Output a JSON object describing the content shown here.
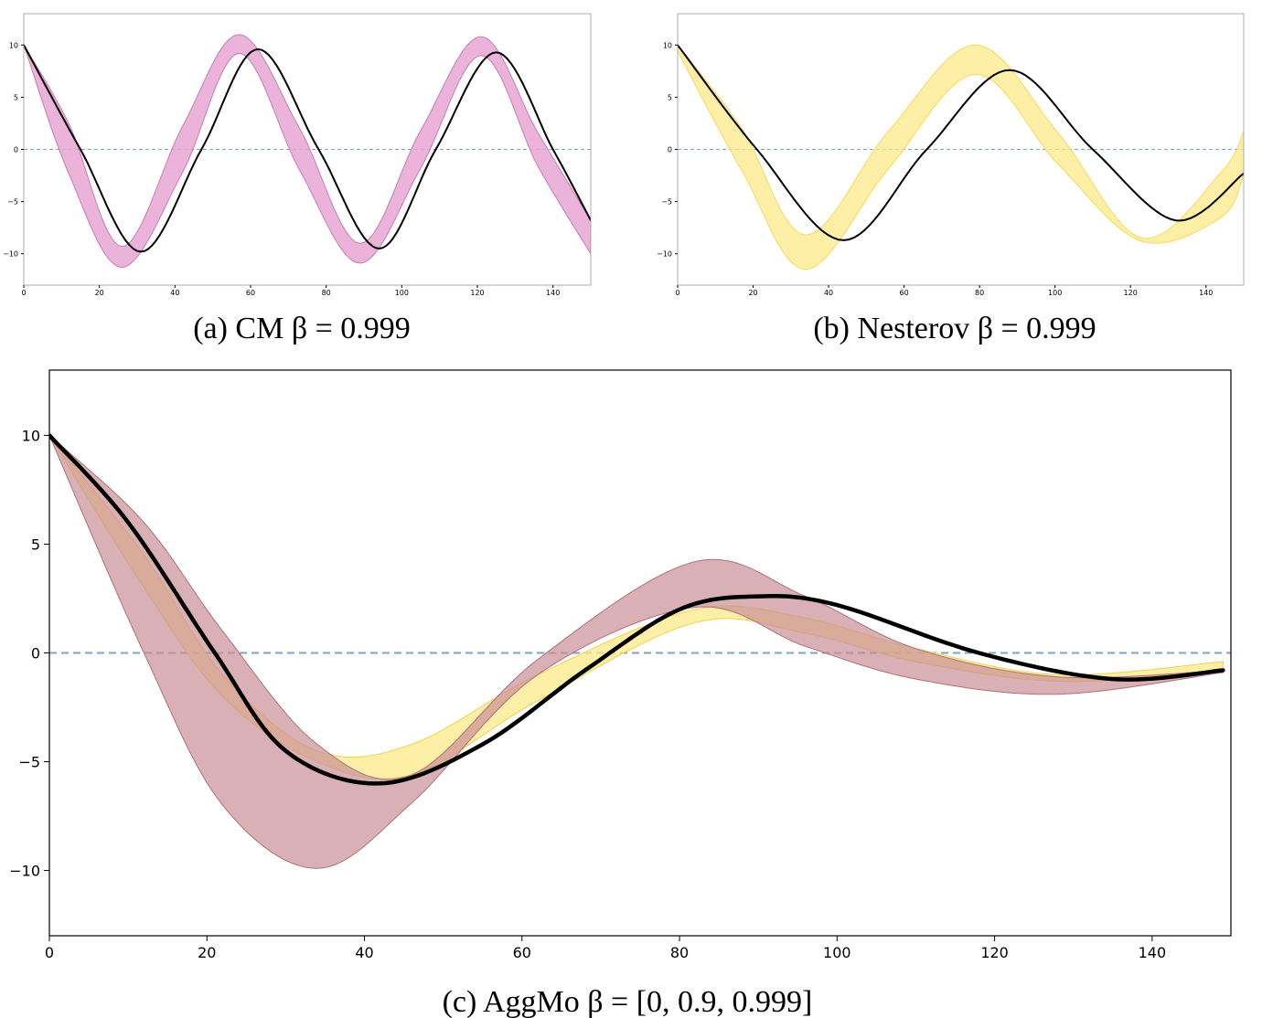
{
  "captions": {
    "a": "(a) CM β = 0.999",
    "b": "(b) Nesterov β = 0.999",
    "c": "(c) AggMo β = [0, 0.9, 0.999]"
  },
  "colors": {
    "cm_band": "#e9a6d3",
    "cm_band_edge": "#c87bb0",
    "nesterov_band": "#fde98a",
    "aggmo_band_wide": "#c98f95",
    "aggmo_band_mid": "#e6a36a",
    "aggmo_band_yellow": "#fde98a",
    "mean_line": "#000000",
    "zero_line": "#7aa3c4"
  },
  "chart_data": [
    {
      "id": "a",
      "type": "area",
      "title": "",
      "xlabel": "",
      "ylabel": "",
      "xlim": [
        0,
        150
      ],
      "ylim": [
        -13,
        13
      ],
      "xticks": [
        0,
        20,
        40,
        60,
        80,
        100,
        120,
        140
      ],
      "yticks": [
        -10,
        -5,
        0,
        5,
        10
      ],
      "grid": false,
      "zero_line": 0,
      "series": [
        {
          "kind": "line",
          "x": [
            0,
            15,
            31,
            47,
            62,
            78,
            94,
            109,
            125,
            140,
            150
          ],
          "y": [
            10,
            0,
            -9.8,
            0,
            9.6,
            0,
            -9.5,
            0,
            9.3,
            0,
            -6.8
          ]
        },
        {
          "kind": "band",
          "x": [
            0,
            12,
            26,
            42,
            57,
            73,
            89,
            105,
            121,
            136,
            150
          ],
          "y_upper": [
            10,
            2.4,
            -9.3,
            2.2,
            11,
            2.0,
            -9.0,
            1.8,
            10.8,
            1.6,
            -6.8
          ],
          "y_lower": [
            10,
            -2.4,
            -11.3,
            -2.2,
            9.2,
            -2.0,
            -10.9,
            -1.8,
            9.0,
            -1.6,
            -10
          ]
        }
      ]
    },
    {
      "id": "b",
      "type": "area",
      "title": "",
      "xlabel": "",
      "ylabel": "",
      "xlim": [
        0,
        150
      ],
      "ylim": [
        -13,
        13
      ],
      "xticks": [
        0,
        20,
        40,
        60,
        80,
        100,
        120,
        140
      ],
      "yticks": [
        -10,
        -5,
        0,
        5,
        10
      ],
      "grid": false,
      "zero_line": 0,
      "series": [
        {
          "kind": "line",
          "x": [
            0,
            21,
            44,
            66,
            88,
            110,
            132,
            150
          ],
          "y": [
            10,
            0,
            -8.7,
            0,
            7.6,
            0,
            -6.8,
            -2.3
          ]
        },
        {
          "kind": "band",
          "x": [
            0,
            17,
            34,
            56,
            79,
            101,
            123,
            144,
            150
          ],
          "y_upper": [
            10,
            2.0,
            -8.2,
            1.8,
            10,
            1.5,
            -8.5,
            -2.2,
            1.7
          ],
          "y_lower": [
            9.4,
            -2.0,
            -11.5,
            -1.8,
            7.2,
            -1.5,
            -8.8,
            -6.5,
            -2.4
          ]
        }
      ]
    },
    {
      "id": "c",
      "type": "area",
      "title": "",
      "xlabel": "",
      "ylabel": "",
      "xlim": [
        0,
        150
      ],
      "ylim": [
        -13,
        13
      ],
      "xticks": [
        0,
        20,
        40,
        60,
        80,
        100,
        120,
        140
      ],
      "yticks": [
        -10,
        -5,
        0,
        5,
        10
      ],
      "grid": false,
      "zero_line": 0,
      "series": [
        {
          "kind": "line",
          "x": [
            0,
            10,
            21,
            30,
            42,
            55,
            68,
            80,
            90,
            100,
            118,
            135,
            149
          ],
          "y": [
            10,
            6.0,
            0,
            -4.5,
            -6.0,
            -4.2,
            -0.8,
            2.0,
            2.6,
            2.2,
            0,
            -1.2,
            -0.8
          ]
        },
        {
          "kind": "band",
          "x": [
            0,
            12,
            22,
            34,
            46,
            62,
            82,
            96,
            110,
            128,
            149
          ],
          "y_upper": [
            10,
            4.5,
            -1.0,
            -4.5,
            -4.2,
            -1.0,
            2.0,
            1.6,
            0.2,
            -1.0,
            -0.4
          ],
          "y_lower": [
            10,
            3.0,
            -2.0,
            -5.0,
            -5.6,
            -2.2,
            1.4,
            0.9,
            -0.4,
            -1.3,
            -0.9
          ]
        },
        {
          "kind": "band",
          "x": [
            0,
            12,
            22,
            34,
            46,
            62,
            82,
            96,
            110,
            128,
            149
          ],
          "y_upper": [
            10,
            6.0,
            1.0,
            -4.2,
            -5.6,
            -0.3,
            4.2,
            2.6,
            0.2,
            -1.1,
            -0.8
          ],
          "y_lower": [
            10,
            0.0,
            -7.0,
            -9.9,
            -6.9,
            -1.0,
            2.1,
            0.3,
            -1.2,
            -1.9,
            -0.9
          ]
        }
      ]
    }
  ]
}
